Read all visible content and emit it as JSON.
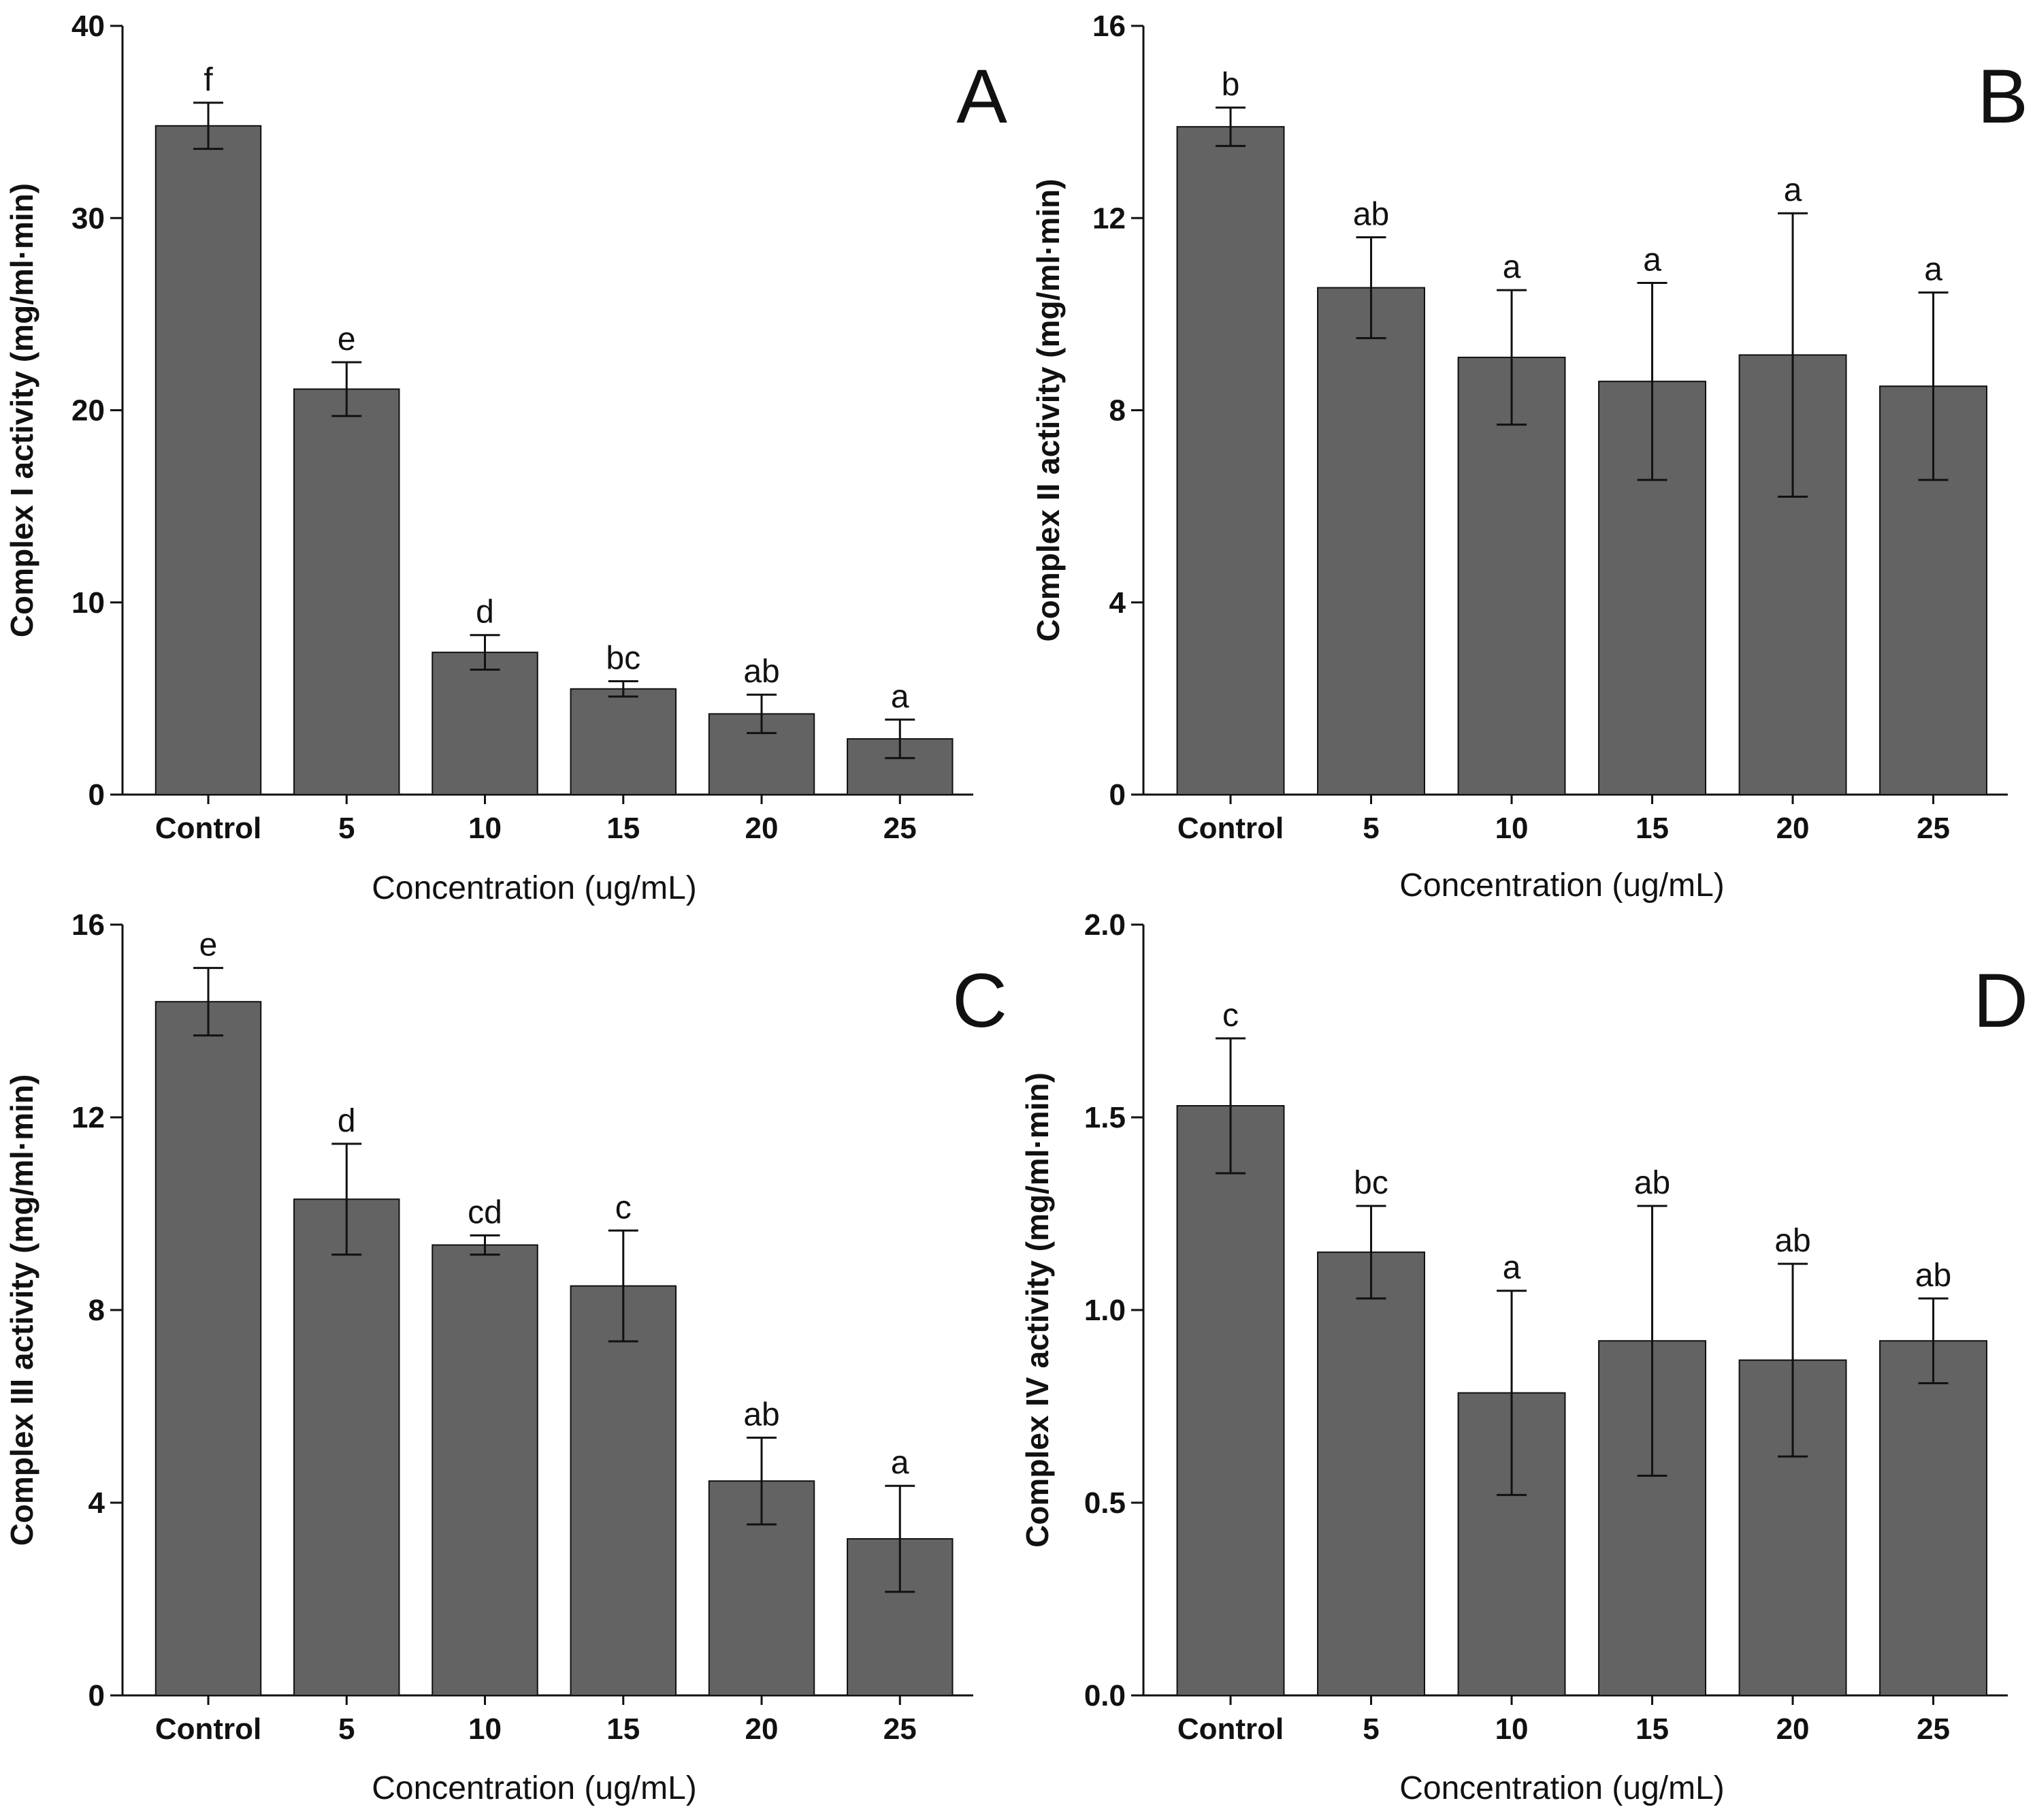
{
  "chart_data": [
    {
      "type": "bar",
      "panel": "A",
      "ylabel": "Complex I activity (mg/ml·min)",
      "xlabel": "Concentration (ug/mL)",
      "categories": [
        "Control",
        "5",
        "10",
        "15",
        "20",
        "25"
      ],
      "values": [
        34.8,
        21.1,
        7.4,
        5.5,
        4.2,
        2.9
      ],
      "errors": [
        1.2,
        1.4,
        0.9,
        0.4,
        1.0,
        1.0
      ],
      "sig_labels": [
        "f",
        "e",
        "d",
        "bc",
        "ab",
        "a"
      ],
      "ylim": [
        0,
        40
      ],
      "yticks": [
        0,
        10,
        20,
        30,
        40
      ],
      "ytick_labels": [
        "0",
        "10",
        "20",
        "30",
        "40"
      ]
    },
    {
      "type": "bar",
      "panel": "B",
      "ylabel": "Complex II activity (mg/ml·min)",
      "xlabel": "Concentration (ug/mL)",
      "categories": [
        "Control",
        "5",
        "10",
        "15",
        "20",
        "25"
      ],
      "values": [
        13.9,
        10.55,
        9.1,
        8.6,
        9.15,
        8.5
      ],
      "errors": [
        0.4,
        1.05,
        1.4,
        2.05,
        2.95,
        1.95
      ],
      "sig_labels": [
        "b",
        "ab",
        "a",
        "a",
        "a",
        "a"
      ],
      "ylim": [
        0,
        16
      ],
      "yticks": [
        0,
        4,
        8,
        12,
        16
      ],
      "ytick_labels": [
        "0",
        "4",
        "8",
        "12",
        "16"
      ]
    },
    {
      "type": "bar",
      "panel": "C",
      "ylabel": "Complex III activity (mg/ml·min)",
      "xlabel": "Concentration (ug/mL)",
      "categories": [
        "Control",
        "5",
        "10",
        "15",
        "20",
        "25"
      ],
      "values": [
        14.4,
        10.3,
        9.35,
        8.5,
        4.45,
        3.25
      ],
      "errors": [
        0.7,
        1.15,
        0.2,
        1.15,
        0.9,
        1.1
      ],
      "sig_labels": [
        "e",
        "d",
        "cd",
        "c",
        "ab",
        "a"
      ],
      "ylim": [
        0,
        16
      ],
      "yticks": [
        0,
        4,
        8,
        12,
        16
      ],
      "ytick_labels": [
        "0",
        "4",
        "8",
        "12",
        "16"
      ]
    },
    {
      "type": "bar",
      "panel": "D",
      "ylabel": "Complex IV activity (mg/ml·min)",
      "xlabel": "Concentration (ug/mL)",
      "categories": [
        "Control",
        "5",
        "10",
        "15",
        "20",
        "25"
      ],
      "values": [
        1.53,
        1.15,
        0.785,
        0.92,
        0.87,
        0.92
      ],
      "errors": [
        0.175,
        0.12,
        0.265,
        0.35,
        0.25,
        0.11
      ],
      "sig_labels": [
        "c",
        "bc",
        "a",
        "ab",
        "ab",
        "ab"
      ],
      "ylim": [
        0,
        2.0
      ],
      "yticks": [
        0,
        0.5,
        1.0,
        1.5,
        2.0
      ],
      "ytick_labels": [
        "0.0",
        "0.5",
        "1.0",
        "1.5",
        "2.0"
      ]
    }
  ],
  "style": {
    "bar_color": "#636363",
    "axis_color": "#111111"
  }
}
